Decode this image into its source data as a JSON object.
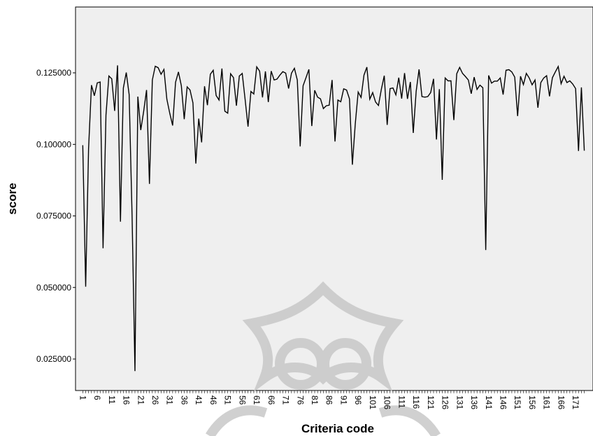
{
  "chart_data": {
    "type": "line",
    "title": "",
    "xlabel": "Criteria code",
    "ylabel": "score",
    "x_tick_labels": [
      "1",
      "6",
      "11",
      "16",
      "21",
      "26",
      "31",
      "36",
      "41",
      "46",
      "51",
      "56",
      "61",
      "66",
      "71",
      "76",
      "81",
      "86",
      "91",
      "96",
      "101",
      "106",
      "111",
      "116",
      "121",
      "126",
      "131",
      "136",
      "141",
      "146",
      "151",
      "156",
      "161",
      "166",
      "171"
    ],
    "y_tick_labels": [
      "0.025000",
      "0.050000",
      "0.075000",
      "0.100000",
      "0.125000"
    ],
    "y_ticks": [
      0.025,
      0.05,
      0.075,
      0.1,
      0.125
    ],
    "xlim": [
      -1.5,
      177
    ],
    "ylim": [
      0.014,
      0.148
    ],
    "grid": false,
    "colors": {
      "plot_background": "#efefef",
      "line": "#000000",
      "watermark": "#c8c8c8"
    },
    "series": [
      {
        "x": [
          1,
          2,
          3,
          4,
          5,
          6,
          7,
          8,
          9,
          10,
          11,
          12,
          13,
          14,
          15,
          16,
          17,
          18,
          19,
          20,
          21,
          22,
          23,
          24,
          25,
          26,
          27,
          28,
          29,
          30,
          31,
          32,
          33,
          34,
          35,
          36,
          37,
          38,
          39,
          40,
          41,
          42,
          43,
          44,
          45,
          46,
          47,
          48,
          49,
          50,
          51,
          52,
          53,
          54,
          55,
          56,
          57,
          58,
          59,
          60,
          61,
          62,
          63,
          64,
          65,
          66,
          67,
          68,
          69,
          70,
          71,
          72,
          73,
          74,
          75,
          76,
          77,
          78,
          79,
          80,
          81,
          82,
          83,
          84,
          85,
          86,
          87,
          88,
          89,
          90,
          91,
          92,
          93,
          94,
          95,
          96,
          97,
          98,
          99,
          100,
          101,
          102,
          103,
          104,
          105,
          106,
          107,
          108,
          109,
          110,
          111,
          112,
          113,
          114,
          115,
          116,
          117,
          118,
          119,
          120,
          121,
          122,
          123,
          124,
          125,
          126,
          127,
          128,
          129,
          130,
          131,
          132,
          133,
          134,
          135,
          136,
          137,
          138,
          139,
          140,
          141,
          142,
          143,
          144,
          145,
          146,
          147,
          148,
          149,
          150,
          151,
          152,
          153,
          154,
          155,
          156,
          157,
          158,
          159,
          160,
          161,
          162,
          163,
          164,
          165,
          166,
          167,
          168,
          169,
          170,
          171,
          172,
          173,
          174
        ],
        "values": [
          0.0997,
          0.0503,
          0.0985,
          0.1207,
          0.117,
          0.1215,
          0.1218,
          0.0637,
          0.1102,
          0.1239,
          0.1229,
          0.1117,
          0.1276,
          0.073,
          0.1197,
          0.1251,
          0.1174,
          0.0754,
          0.0208,
          0.1167,
          0.105,
          0.1115,
          0.119,
          0.0862,
          0.1225,
          0.1273,
          0.1268,
          0.1245,
          0.1262,
          0.1158,
          0.1109,
          0.1066,
          0.1217,
          0.1253,
          0.1205,
          0.1088,
          0.1201,
          0.119,
          0.1145,
          0.0933,
          0.109,
          0.1007,
          0.1203,
          0.1137,
          0.1245,
          0.1259,
          0.1171,
          0.1155,
          0.1265,
          0.1116,
          0.1109,
          0.1247,
          0.1233,
          0.1135,
          0.1239,
          0.1248,
          0.1157,
          0.1062,
          0.1185,
          0.1176,
          0.1271,
          0.1256,
          0.1164,
          0.1255,
          0.1148,
          0.1256,
          0.1225,
          0.1228,
          0.1242,
          0.1254,
          0.1249,
          0.1195,
          0.1249,
          0.1266,
          0.1225,
          0.0993,
          0.1205,
          0.1233,
          0.1262,
          0.1064,
          0.1189,
          0.1165,
          0.1159,
          0.1125,
          0.1135,
          0.1137,
          0.1225,
          0.101,
          0.1155,
          0.1149,
          0.1194,
          0.119,
          0.1159,
          0.0929,
          0.1072,
          0.1183,
          0.1164,
          0.1242,
          0.127,
          0.1158,
          0.1181,
          0.1148,
          0.1136,
          0.1193,
          0.124,
          0.1068,
          0.1195,
          0.1197,
          0.1173,
          0.1233,
          0.116,
          0.1249,
          0.1159,
          0.1218,
          0.104,
          0.1185,
          0.1262,
          0.1167,
          0.1165,
          0.1167,
          0.1181,
          0.1229,
          0.1017,
          0.1193,
          0.0876,
          0.1232,
          0.1222,
          0.1222,
          0.1085,
          0.1247,
          0.1269,
          0.1248,
          0.1237,
          0.1225,
          0.1177,
          0.1235,
          0.1192,
          0.1207,
          0.1198,
          0.0631,
          0.1241,
          0.1214,
          0.1221,
          0.1221,
          0.1232,
          0.1174,
          0.1259,
          0.1261,
          0.1253,
          0.1235,
          0.1099,
          0.1238,
          0.1209,
          0.1248,
          0.1232,
          0.1208,
          0.1225,
          0.1128,
          0.1216,
          0.1232,
          0.124,
          0.1168,
          0.1233,
          0.1253,
          0.1272,
          0.1212,
          0.1238,
          0.1216,
          0.1222,
          0.1211,
          0.1195,
          0.0977,
          0.1199,
          0.0978
        ]
      }
    ]
  }
}
